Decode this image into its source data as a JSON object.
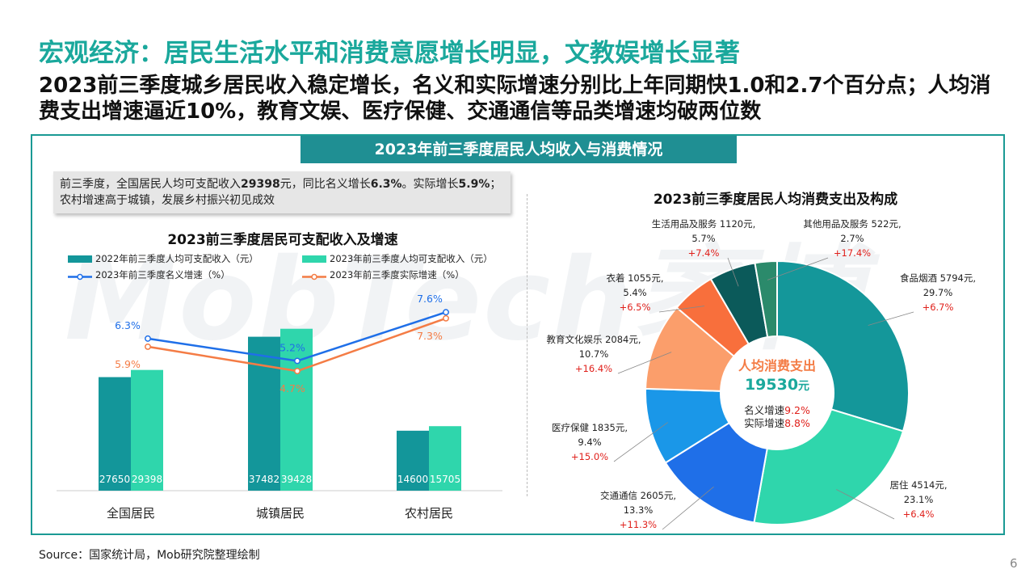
{
  "title": "宏观经济：居民生活水平和消费意愿增长明显，文教娱增长显著",
  "subtitle": "2023前三季度城乡居民收入稳定增长，名义和实际增速分别比上年同期快1.0和2.7个百分点；人均消费支出增速逼近10%，教育文娱、医疗保健、交通通信等品类增速均破两位数",
  "banner": "2023年前三季度居民人均收入与消费情况",
  "note": {
    "p1": "前三季度，全国居民人均可支配收入",
    "v1": "29398",
    "p2": "元，同比名义增长",
    "v2": "6.3%",
    "p3": "。实际增长",
    "v3": "5.9%",
    "p4": "；农村增速高于城镇，发展乡村振兴初见成效"
  },
  "watermark": "MobTech袤博",
  "source": "Source：国家统计局，Mob研究院整理绘制",
  "page_number": "6",
  "colors": {
    "teal": "#1aa89c",
    "bar2022": "#13969a",
    "bar2023": "#2fd6ac",
    "nominal": "#1f6fe8",
    "real": "#f47c45"
  },
  "chart_data": [
    {
      "type": "bar",
      "title": "2023前三季度居民可支配收入及增速",
      "categories": [
        "全国居民",
        "城镇居民",
        "农村居民"
      ],
      "series": [
        {
          "name": "2022年前三季度人均可支配收入（元）",
          "type": "bar",
          "values": [
            27650,
            37482,
            14600
          ],
          "labels": [
            "27650",
            "37482",
            "14600"
          ]
        },
        {
          "name": "2023年前三季度人均可支配收入（元）",
          "type": "bar",
          "values": [
            29398,
            39428,
            15705
          ],
          "labels": [
            "29398",
            "39428",
            "15705"
          ]
        },
        {
          "name": "2023年前三季度名义增速（%）",
          "type": "line",
          "values": [
            6.3,
            5.2,
            7.6
          ],
          "labels": [
            "6.3%",
            "5.2%",
            "7.6%"
          ]
        },
        {
          "name": "2023年前三季度实际增速（%）",
          "type": "line",
          "values": [
            5.9,
            4.7,
            7.3
          ],
          "labels": [
            "5.9%",
            "4.7%",
            "7.3%"
          ]
        }
      ],
      "legend": "top"
    },
    {
      "type": "pie",
      "title": "2023前三季度居民人均消费支出及构成",
      "center": {
        "label": "人均消费支出",
        "value": "19530",
        "unit": "元",
        "nominal_label": "名义增速",
        "nominal_value": "9.2%",
        "real_label": "实际增速",
        "real_value": "8.8%"
      },
      "slices": [
        {
          "name": "食品烟酒",
          "amount": "5794元,",
          "share": 29.7,
          "share_label": "29.7%",
          "growth": "+6.7%",
          "color": "#14979a"
        },
        {
          "name": "居住",
          "amount": "4514元,",
          "share": 23.1,
          "share_label": "23.1%",
          "growth": "+6.4%",
          "color": "#2fd6ac"
        },
        {
          "name": "交通通信",
          "amount": "2605元,",
          "share": 13.3,
          "share_label": "13.3%",
          "growth": "+11.3%",
          "color": "#1f6fe8"
        },
        {
          "name": "医疗保健",
          "amount": "1835元,",
          "share": 9.4,
          "share_label": "9.4%",
          "growth": "+15.0%",
          "color": "#1a97e8"
        },
        {
          "name": "教育文化娱乐",
          "amount": "2084元,",
          "share": 10.7,
          "share_label": "10.7%",
          "growth": "+16.4%",
          "color": "#fb9e6b"
        },
        {
          "name": "衣着",
          "amount": "1055元,",
          "share": 5.4,
          "share_label": "5.4%",
          "growth": "+6.5%",
          "color": "#f86f3c"
        },
        {
          "name": "生活用品及服务",
          "amount": "1120元,",
          "share": 5.7,
          "share_label": "5.7%",
          "growth": "+7.4%",
          "color": "#0b5a5a"
        },
        {
          "name": "其他用品及服务",
          "amount": "522元,",
          "share": 2.7,
          "share_label": "2.7%",
          "growth": "+17.4%",
          "color": "#2b8a6b"
        }
      ]
    }
  ]
}
